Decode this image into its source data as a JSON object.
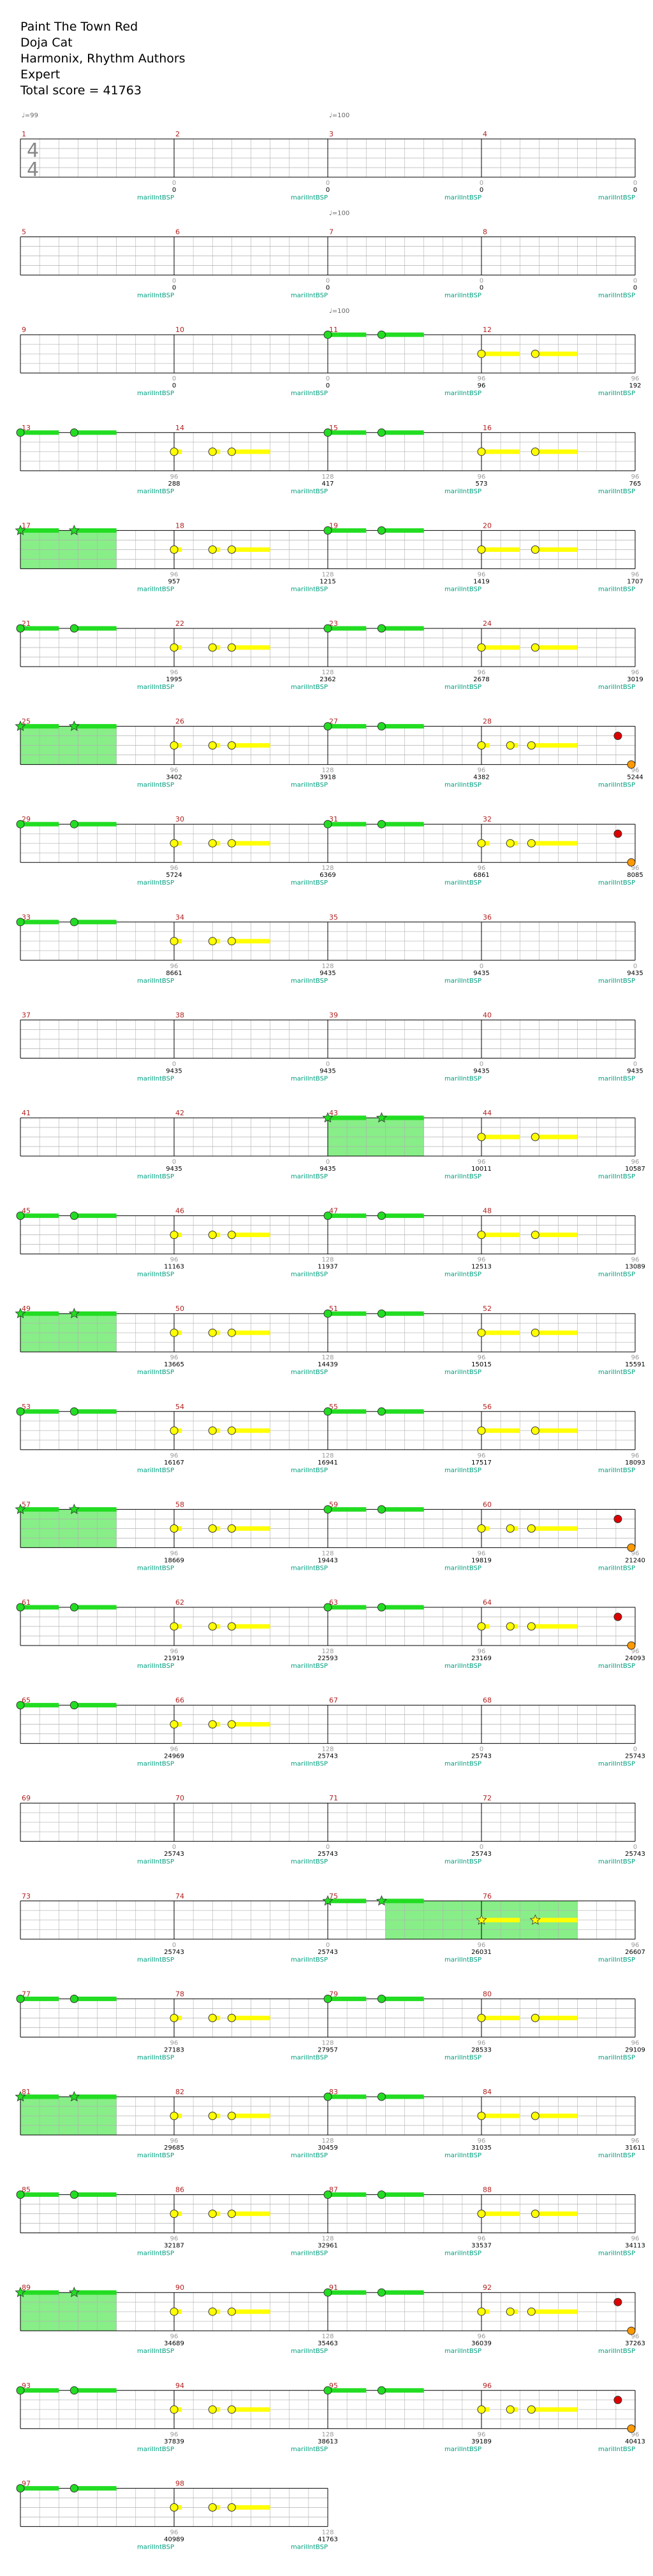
{
  "header": {
    "title": "Paint The Town Red",
    "artist": "Doja Cat",
    "authors": "Harmonix, Rhythm Authors",
    "difficulty": "Expert",
    "total_score": "Total score = 41763"
  },
  "time_signature": {
    "top": "4",
    "bottom": "4"
  },
  "player_label": "mariIIntBSP",
  "colors": {
    "measure_number": "#b22222",
    "player_label": "#00a080",
    "score": "#000000",
    "streak": "#999999",
    "tempo": "#666666",
    "staff_line": "#000000",
    "grid_line": "#b0b0b0",
    "green_note": "#22dd22",
    "yellow_note": "#ffff00",
    "red_note": "#dd0000",
    "orange_note": "#ff9900",
    "overdrive_fill": "#88ee88"
  },
  "tempo_markings": [
    {
      "measure": 1,
      "label": "♩=99"
    },
    {
      "measure": 3,
      "label": "♩=100"
    },
    {
      "measure": 7,
      "label": "♩=100"
    },
    {
      "measure": 11,
      "label": "♩=100"
    }
  ],
  "rows": [
    {
      "measures": [
        1,
        2,
        3,
        4
      ],
      "streaks": [
        "",
        "0",
        "0",
        "0",
        "0"
      ],
      "scores": [
        "",
        "0",
        "0",
        "0",
        "0"
      ]
    },
    {
      "measures": [
        5,
        6,
        7,
        8
      ],
      "streaks": [
        "",
        "0",
        "0",
        "0",
        "0"
      ],
      "scores": [
        "",
        "0",
        "0",
        "0",
        "0"
      ]
    },
    {
      "measures": [
        9,
        10,
        11,
        12
      ],
      "streaks": [
        "",
        "0",
        "0",
        "96",
        "96"
      ],
      "scores": [
        "",
        "0",
        "0",
        "96",
        "192"
      ]
    },
    {
      "measures": [
        13,
        14,
        15,
        16
      ],
      "streaks": [
        "",
        "96",
        "128",
        "96",
        "96"
      ],
      "scores": [
        "",
        "288",
        "417",
        "573",
        "765"
      ]
    },
    {
      "measures": [
        17,
        18,
        19,
        20
      ],
      "streaks": [
        "",
        "96",
        "128",
        "96",
        "96"
      ],
      "scores": [
        "",
        "957",
        "1215",
        "1419",
        "1707"
      ]
    },
    {
      "measures": [
        21,
        22,
        23,
        24
      ],
      "streaks": [
        "",
        "96",
        "128",
        "96",
        "96"
      ],
      "scores": [
        "",
        "1995",
        "2362",
        "2678",
        "3019"
      ]
    },
    {
      "measures": [
        25,
        26,
        27,
        28
      ],
      "streaks": [
        "",
        "96",
        "128",
        "96",
        "96"
      ],
      "scores": [
        "",
        "3402",
        "3918",
        "4382",
        "5244"
      ]
    },
    {
      "measures": [
        29,
        30,
        31,
        32
      ],
      "streaks": [
        "",
        "96",
        "128",
        "96",
        "96"
      ],
      "scores": [
        "",
        "5724",
        "6369",
        "6861",
        "8085"
      ]
    },
    {
      "measures": [
        33,
        34,
        35,
        36
      ],
      "streaks": [
        "",
        "96",
        "128",
        "0",
        "0"
      ],
      "scores": [
        "",
        "8661",
        "9435",
        "9435",
        "9435"
      ]
    },
    {
      "measures": [
        37,
        38,
        39,
        40
      ],
      "streaks": [
        "",
        "0",
        "0",
        "0",
        "0"
      ],
      "scores": [
        "",
        "9435",
        "9435",
        "9435",
        "9435"
      ]
    },
    {
      "measures": [
        41,
        42,
        43,
        44
      ],
      "streaks": [
        "",
        "0",
        "0",
        "96",
        "96"
      ],
      "scores": [
        "",
        "9435",
        "9435",
        "10011",
        "10587"
      ]
    },
    {
      "measures": [
        45,
        46,
        47,
        48
      ],
      "streaks": [
        "",
        "96",
        "128",
        "96",
        "96"
      ],
      "scores": [
        "",
        "11163",
        "11937",
        "12513",
        "13089"
      ]
    },
    {
      "measures": [
        49,
        50,
        51,
        52
      ],
      "streaks": [
        "",
        "96",
        "128",
        "96",
        "96"
      ],
      "scores": [
        "",
        "13665",
        "14439",
        "15015",
        "15591"
      ]
    },
    {
      "measures": [
        53,
        54,
        55,
        56
      ],
      "streaks": [
        "",
        "96",
        "128",
        "96",
        "96"
      ],
      "scores": [
        "",
        "16167",
        "16941",
        "17517",
        "18093"
      ]
    },
    {
      "measures": [
        57,
        58,
        59,
        60
      ],
      "streaks": [
        "",
        "96",
        "128",
        "96",
        "96"
      ],
      "scores": [
        "",
        "18669",
        "19443",
        "19819",
        "21240"
      ]
    },
    {
      "measures": [
        61,
        62,
        63,
        64
      ],
      "streaks": [
        "",
        "96",
        "128",
        "96",
        "96"
      ],
      "scores": [
        "",
        "21919",
        "22593",
        "23169",
        "24093"
      ]
    },
    {
      "measures": [
        65,
        66,
        67,
        68
      ],
      "streaks": [
        "",
        "96",
        "128",
        "0",
        "0"
      ],
      "scores": [
        "",
        "24969",
        "25743",
        "25743",
        "25743"
      ]
    },
    {
      "measures": [
        69,
        70,
        71,
        72
      ],
      "streaks": [
        "",
        "0",
        "0",
        "0",
        "0"
      ],
      "scores": [
        "",
        "25743",
        "25743",
        "25743",
        "25743"
      ]
    },
    {
      "measures": [
        73,
        74,
        75,
        76
      ],
      "streaks": [
        "",
        "0",
        "0",
        "96",
        "96"
      ],
      "scores": [
        "",
        "25743",
        "25743",
        "26031",
        "26607"
      ]
    },
    {
      "measures": [
        77,
        78,
        79,
        80
      ],
      "streaks": [
        "",
        "96",
        "128",
        "96",
        "96"
      ],
      "scores": [
        "",
        "27183",
        "27957",
        "28533",
        "29109"
      ]
    },
    {
      "measures": [
        81,
        82,
        83,
        84
      ],
      "streaks": [
        "",
        "96",
        "128",
        "96",
        "96"
      ],
      "scores": [
        "",
        "29685",
        "30459",
        "31035",
        "31611"
      ]
    },
    {
      "measures": [
        85,
        86,
        87,
        88
      ],
      "streaks": [
        "",
        "96",
        "128",
        "96",
        "96"
      ],
      "scores": [
        "",
        "32187",
        "32961",
        "33537",
        "34113"
      ]
    },
    {
      "measures": [
        89,
        90,
        91,
        92
      ],
      "streaks": [
        "",
        "96",
        "128",
        "96",
        "96"
      ],
      "scores": [
        "",
        "34689",
        "35463",
        "36039",
        "37263"
      ]
    },
    {
      "measures": [
        93,
        94,
        95,
        96
      ],
      "streaks": [
        "",
        "96",
        "128",
        "96",
        "96"
      ],
      "scores": [
        "",
        "37839",
        "38613",
        "39189",
        "40413"
      ]
    },
    {
      "measures": [
        97,
        98
      ],
      "streaks": [
        "",
        "96",
        "128"
      ],
      "scores": [
        "",
        "40989",
        "41763"
      ]
    }
  ],
  "note_patterns": {
    "intro": {
      "notes": [
        {
          "beat": 0,
          "lane": "green",
          "shape": "circle",
          "sustain": 1.0
        },
        {
          "beat": 1.4,
          "lane": "green",
          "shape": "circle",
          "sustain": 1.1
        }
      ]
    },
    "intro_star": {
      "notes": [
        {
          "beat": 0,
          "lane": "green",
          "shape": "star",
          "sustain": 1.0
        },
        {
          "beat": 1.4,
          "lane": "green",
          "shape": "star",
          "sustain": 1.1
        }
      ]
    },
    "yellow3": {
      "notes": [
        {
          "beat": 0,
          "lane": "yellow",
          "shape": "circle",
          "sustain": 0.2
        },
        {
          "beat": 1.0,
          "lane": "yellow",
          "shape": "circle",
          "sustain": 0.2
        },
        {
          "beat": 1.5,
          "lane": "yellow",
          "shape": "circle",
          "sustain": 1.0
        }
      ]
    },
    "yellow2": {
      "notes": [
        {
          "beat": 0,
          "lane": "yellow",
          "shape": "circle",
          "sustain": 1.0
        },
        {
          "beat": 1.4,
          "lane": "yellow",
          "shape": "circle",
          "sustain": 1.1
        }
      ]
    },
    "yellow2_star": {
      "notes": [
        {
          "beat": 0,
          "lane": "yellow",
          "shape": "star",
          "sustain": 1.0
        },
        {
          "beat": 1.4,
          "lane": "yellow",
          "shape": "star",
          "sustain": 1.1
        }
      ]
    },
    "yellow3_end": {
      "notes": [
        {
          "beat": 0,
          "lane": "yellow",
          "shape": "circle",
          "sustain": 0.2
        },
        {
          "beat": 0.75,
          "lane": "yellow",
          "shape": "circle",
          "sustain": 0.2
        },
        {
          "beat": 1.3,
          "lane": "yellow",
          "shape": "circle",
          "sustain": 1.2
        },
        {
          "beat": 3.55,
          "lane": "red",
          "shape": "circle",
          "sustain": 0
        },
        {
          "beat": 3.9,
          "lane": "orange",
          "shape": "circle",
          "sustain": 0
        }
      ]
    }
  },
  "measure_notes": {
    "11": "intro",
    "12": "yellow2",
    "13": "intro",
    "14": "yellow3",
    "15": "intro",
    "16": "yellow2",
    "17": "intro_star",
    "18": "yellow3",
    "19": "intro",
    "20": "yellow2",
    "21": "intro",
    "22": "yellow3",
    "23": "intro",
    "24": "yellow2",
    "25": "intro_star",
    "26": "yellow3",
    "27": "intro",
    "28": "yellow3_end",
    "29": "intro",
    "30": "yellow3",
    "31": "intro",
    "32": "yellow3_end",
    "33": "intro",
    "34": "yellow3",
    "43": "intro_star",
    "44": "yellow2",
    "45": "intro",
    "46": "yellow3",
    "47": "intro",
    "48": "yellow2",
    "49": "intro_star",
    "50": "yellow3",
    "51": "intro",
    "52": "yellow2",
    "53": "intro",
    "54": "yellow3",
    "55": "intro",
    "56": "yellow2",
    "57": "intro_star",
    "58": "yellow3",
    "59": "intro",
    "60": "yellow3_end",
    "61": "intro",
    "62": "yellow3",
    "63": "intro",
    "64": "yellow3_end",
    "65": "intro",
    "66": "yellow3",
    "75": "intro_star",
    "76": "yellow2_star",
    "77": "intro",
    "78": "yellow3",
    "79": "intro",
    "80": "yellow2",
    "81": "intro_star",
    "82": "yellow3",
    "83": "intro",
    "84": "yellow2",
    "85": "intro",
    "86": "yellow3",
    "87": "intro",
    "88": "yellow2",
    "89": "intro_star",
    "90": "yellow3",
    "91": "intro",
    "92": "yellow3_end",
    "93": "intro",
    "94": "yellow3",
    "95": "intro",
    "96": "yellow3_end",
    "97": "intro",
    "98": "yellow3"
  },
  "overdrive_measures": [
    {
      "measure": 17,
      "start": 0,
      "end": 2.5
    },
    {
      "measure": 25,
      "start": 0,
      "end": 2.5
    },
    {
      "measure": 43,
      "start": 0,
      "end": 2.5
    },
    {
      "measure": 49,
      "start": 0,
      "end": 2.5
    },
    {
      "measure": 57,
      "start": 0,
      "end": 2.5
    },
    {
      "measure": 75,
      "start": 1.5,
      "end": 4
    },
    {
      "measure": 76,
      "start": 0,
      "end": 2.5
    },
    {
      "measure": 81,
      "start": 0,
      "end": 2.5
    },
    {
      "measure": 89,
      "start": 0,
      "end": 2.5
    }
  ]
}
